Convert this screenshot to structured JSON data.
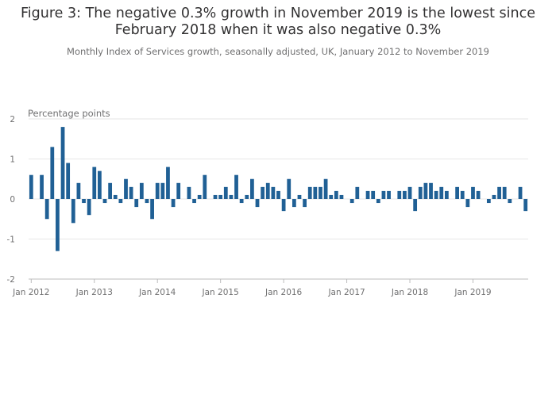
{
  "chart_data": {
    "type": "bar",
    "title": "Figure 3: The negative 0.3% growth in November 2019 is the lowest since February 2018 when it was also negative 0.3%",
    "subtitle": "Monthly Index of Services growth, seasonally adjusted, UK, January 2012 to November 2019",
    "ylabel": "Percentage points",
    "xlabel": "",
    "ylim": [
      -2,
      2
    ],
    "yticks": [
      "2",
      "1",
      "0",
      "-1",
      "-2"
    ],
    "ytick_values": [
      2,
      1,
      0,
      -1,
      -2
    ],
    "xticks": [
      "Jan 2012",
      "Jan 2013",
      "Jan 2014",
      "Jan 2015",
      "Jan 2016",
      "Jan 2017",
      "Jan 2018",
      "Jan 2019"
    ],
    "start": "Jan 2012",
    "end": "Nov 2019",
    "grid": true,
    "bar_color": "#206095",
    "values": [
      0.6,
      0.0,
      0.6,
      -0.5,
      1.3,
      -1.3,
      1.8,
      0.9,
      -0.6,
      0.4,
      -0.1,
      -0.4,
      0.8,
      0.7,
      -0.1,
      0.4,
      0.1,
      -0.1,
      0.5,
      0.3,
      -0.2,
      0.4,
      -0.1,
      -0.5,
      0.4,
      0.4,
      0.8,
      -0.2,
      0.4,
      0.0,
      0.3,
      -0.1,
      0.1,
      0.6,
      0.0,
      0.1,
      0.1,
      0.3,
      0.1,
      0.6,
      -0.1,
      0.1,
      0.5,
      -0.2,
      0.3,
      0.4,
      0.3,
      0.2,
      -0.3,
      0.5,
      -0.2,
      0.1,
      -0.2,
      0.3,
      0.3,
      0.3,
      0.5,
      0.1,
      0.2,
      0.1,
      0.0,
      -0.1,
      0.3,
      0.0,
      0.2,
      0.2,
      -0.1,
      0.2,
      0.2,
      0.0,
      0.2,
      0.2,
      0.3,
      -0.3,
      0.3,
      0.4,
      0.4,
      0.2,
      0.3,
      0.2,
      0.0,
      0.3,
      0.2,
      -0.2,
      0.3,
      0.2,
      0.0,
      -0.1,
      0.1,
      0.3,
      0.3,
      -0.1,
      0.0,
      0.3,
      -0.3
    ]
  }
}
